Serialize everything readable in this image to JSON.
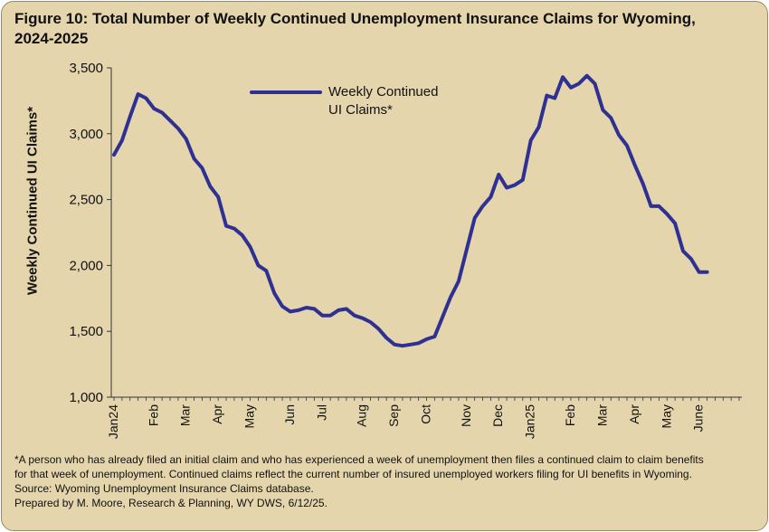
{
  "title_line1": "Figure 10: Total Number of Weekly Continued Unemployment Insurance Claims for Wyoming,",
  "title_line2": "2024-2025",
  "colors": {
    "background": "#e4d5ac",
    "line": "#2e3193"
  },
  "chart_data": {
    "type": "line",
    "ylabel": "Weekly Continued UI Claims*",
    "xlabel": "",
    "ylim": [
      1000,
      3500
    ],
    "yticks": [
      1000,
      1500,
      2000,
      2500,
      3000,
      3500
    ],
    "ytick_labels": [
      "1,000",
      "1,500",
      "2,000",
      "2,500",
      "3,000",
      "3,500"
    ],
    "grid": false,
    "legend": "top-center",
    "x_tick_labels": [
      "Jan24",
      "Feb",
      "Mar",
      "Apr",
      "May",
      "Jun",
      "Jul",
      "Aug",
      "Sep",
      "Oct",
      "Nov",
      "Dec",
      "Jan25",
      "Feb",
      "Mar",
      "Apr",
      "May",
      "June"
    ],
    "x_tick_weeks": [
      0,
      5,
      9,
      13,
      17,
      22,
      26,
      31,
      35,
      39,
      44,
      48,
      52,
      57,
      61,
      65,
      69,
      73
    ],
    "series": [
      {
        "name": "Weekly Continued UI Claims*",
        "values": [
          2840,
          2950,
          3130,
          3300,
          3270,
          3190,
          3160,
          3100,
          3040,
          2960,
          2810,
          2740,
          2600,
          2520,
          2300,
          2280,
          2230,
          2140,
          2000,
          1960,
          1790,
          1690,
          1650,
          1660,
          1680,
          1670,
          1620,
          1620,
          1660,
          1670,
          1620,
          1600,
          1570,
          1520,
          1450,
          1400,
          1390,
          1400,
          1410,
          1440,
          1460,
          1610,
          1760,
          1880,
          2120,
          2360,
          2450,
          2520,
          2690,
          2590,
          2610,
          2650,
          2950,
          3050,
          3290,
          3270,
          3430,
          3350,
          3380,
          3440,
          3380,
          3180,
          3120,
          2990,
          2910,
          2760,
          2620,
          2450,
          2450,
          2390,
          2320,
          2110,
          2050,
          1950,
          1950
        ]
      }
    ]
  },
  "legend_label_line1": "Weekly Continued",
  "legend_label_line2": "UI Claims*",
  "footnote_line1": "*A person who has already filed an initial claim and who has experienced a week of unemployment then files a continued claim to claim benefits",
  "footnote_line2": "for that week of unemployment. Continued claims reflect the current number of insured unemployed workers filing for UI benefits in Wyoming.",
  "source_line": "Source: Wyoming Unemployment Insurance Claims database.",
  "prepared_line": "Prepared by M. Moore, Research & Planning, WY DWS, 6/12/25."
}
